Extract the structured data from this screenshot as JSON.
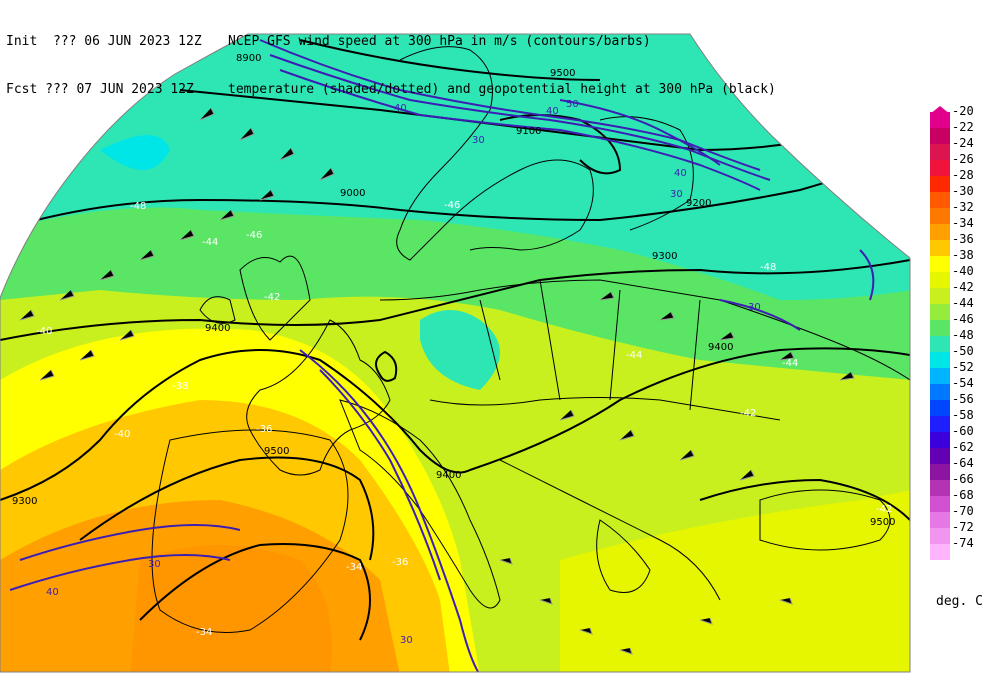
{
  "header": {
    "line1_left": "Init  ??? 06 JUN 2023 12Z",
    "line1_right": "NCEP GFS wind speed at 300 hPa in m/s (contours/barbs)",
    "line2_left": "Fcst ??? 07 JUN 2023 12Z",
    "line2_right": "temperature (shaded/dotted) and geopotential height at 300 hPa (black)"
  },
  "colorbar": {
    "unit": "deg. C",
    "levels": [
      {
        "label": "-20",
        "color": "#e0008c"
      },
      {
        "label": "-22",
        "color": "#c80064"
      },
      {
        "label": "-24",
        "color": "#dc1450"
      },
      {
        "label": "-26",
        "color": "#f0143c"
      },
      {
        "label": "-28",
        "color": "#ff2800"
      },
      {
        "label": "-30",
        "color": "#ff5a00"
      },
      {
        "label": "-32",
        "color": "#ff7800"
      },
      {
        "label": "-34",
        "color": "#ffa000"
      },
      {
        "label": "-36",
        "color": "#ffc800"
      },
      {
        "label": "-38",
        "color": "#ffff00"
      },
      {
        "label": "-40",
        "color": "#e6f500"
      },
      {
        "label": "-42",
        "color": "#c8f01e"
      },
      {
        "label": "-44",
        "color": "#96ec3c"
      },
      {
        "label": "-46",
        "color": "#5ae664"
      },
      {
        "label": "-48",
        "color": "#2ee6b4"
      },
      {
        "label": "-50",
        "color": "#00e6e6"
      },
      {
        "label": "-52",
        "color": "#00b4ff"
      },
      {
        "label": "-54",
        "color": "#0078ff"
      },
      {
        "label": "-56",
        "color": "#0046ff"
      },
      {
        "label": "-58",
        "color": "#1e1eff"
      },
      {
        "label": "-60",
        "color": "#3c00dc"
      },
      {
        "label": "-62",
        "color": "#6400b4"
      },
      {
        "label": "-64",
        "color": "#8c14a0"
      },
      {
        "label": "-66",
        "color": "#b432b4"
      },
      {
        "label": "-68",
        "color": "#d250d2"
      },
      {
        "label": "-70",
        "color": "#e678e6"
      },
      {
        "label": "-72",
        "color": "#f096f0"
      },
      {
        "label": "-74",
        "color": "#ffb4ff"
      }
    ]
  },
  "map_labels": {
    "height_9500_a": "9500",
    "height_9500_b": "9500",
    "height_9500_c": "9500",
    "height_9400_a": "9400",
    "height_9400_b": "9400",
    "height_9400_c": "9400",
    "height_9300_a": "9300",
    "height_9300_b": "9300",
    "height_9200": "9200",
    "height_9100": "9100",
    "height_9000": "9000",
    "height_8900": "8900",
    "wind_30_a": "30",
    "wind_30_b": "30",
    "wind_30_c": "30",
    "wind_30_d": "30",
    "wind_30_e": "30",
    "wind_40_a": "40",
    "wind_40_b": "40",
    "wind_40_c": "40",
    "wind_40_d": "40",
    "wind_50": "50",
    "temp_a": "-40",
    "temp_b": "-38",
    "temp_c": "-36",
    "temp_d": "-34",
    "temp_e": "-34",
    "temp_f": "-36",
    "temp_g": "-40",
    "temp_h": "-42",
    "temp_i": "-44",
    "temp_j": "-46",
    "temp_k": "-48",
    "temp_l": "-46",
    "temp_m": "-44",
    "temp_n": "-48",
    "temp_o": "-42",
    "temp_p": "-44",
    "temp_q": "-42"
  },
  "colors": {
    "background": "#ffffff",
    "height_contour": "#000000",
    "wind_contour": "#3c1eb4",
    "barb": "#969696",
    "coast": "#000000"
  }
}
